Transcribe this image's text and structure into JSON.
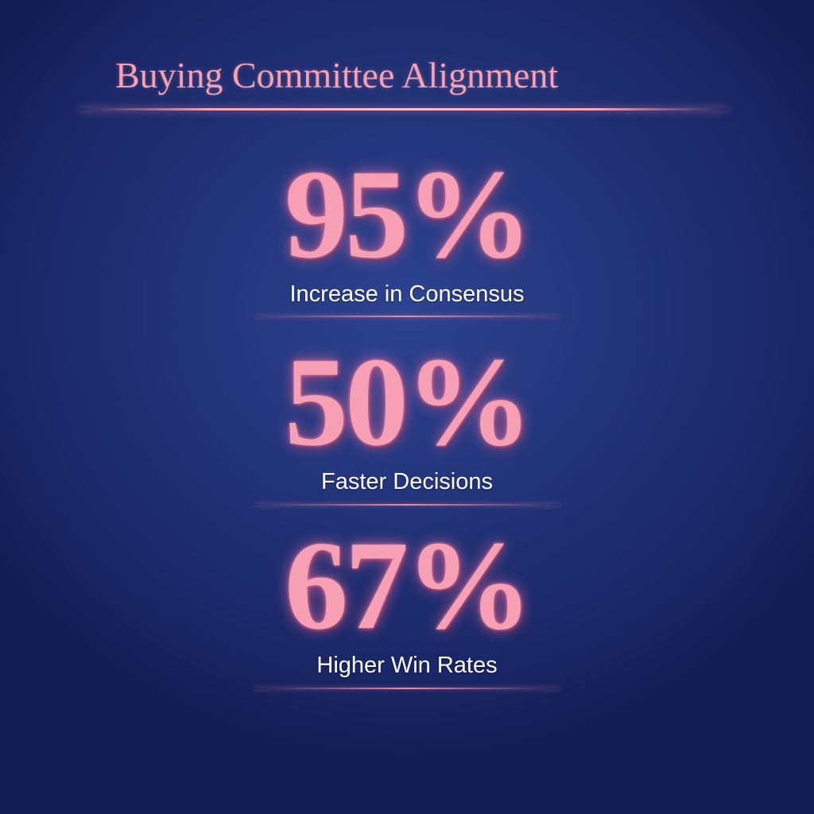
{
  "title": "Buying Committee Alignment",
  "colors": {
    "accent": "#f7a0b5",
    "background": "#223479",
    "label": "#ffffff"
  },
  "stats": [
    {
      "value": "95%",
      "label": "Increase in Consensus"
    },
    {
      "value": "50%",
      "label": "Faster Decisions"
    },
    {
      "value": "67%",
      "label": "Higher Win Rates"
    }
  ]
}
